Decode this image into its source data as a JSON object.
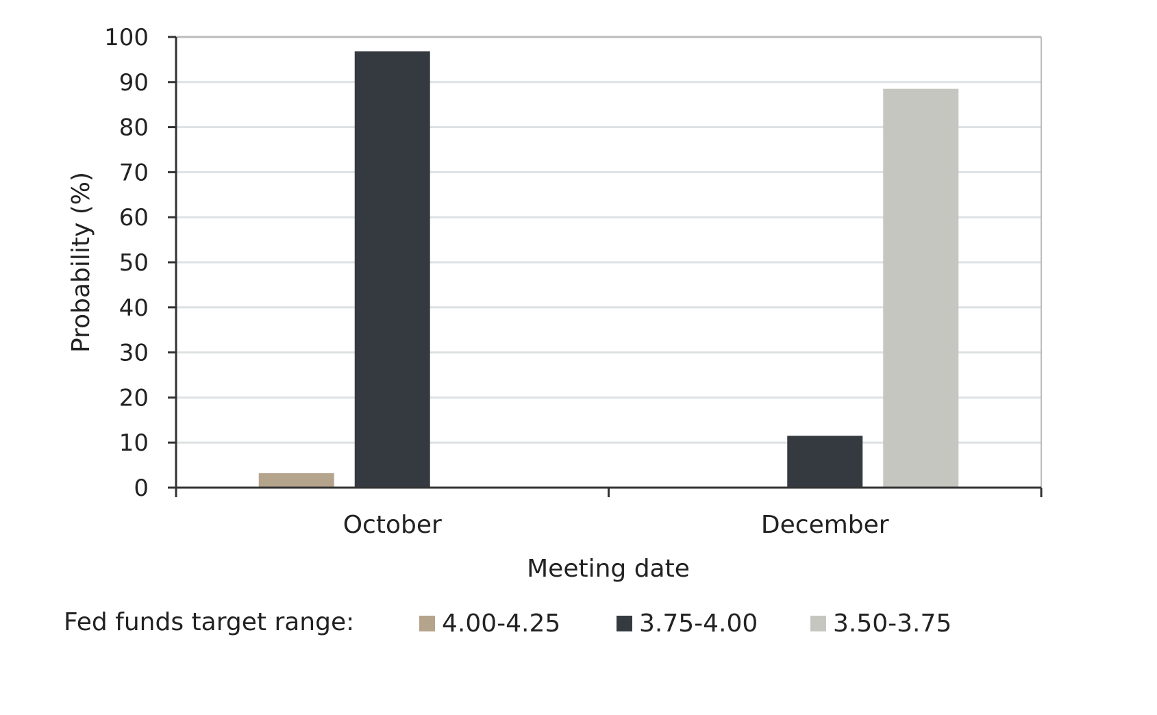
{
  "chart_data": {
    "type": "bar",
    "title": "",
    "xlabel": "Meeting date",
    "ylabel": "Probability (%)",
    "ylim": [
      0,
      100
    ],
    "yticks": [
      0,
      10,
      20,
      30,
      40,
      50,
      60,
      70,
      80,
      90,
      100
    ],
    "grid": true,
    "categories": [
      "October",
      "December"
    ],
    "legend_title": "Fed funds target range:",
    "legend_position": "bottom",
    "series": [
      {
        "name": "4.00-4.25",
        "color": "#b5a48c",
        "values": [
          3.2,
          null
        ]
      },
      {
        "name": "3.75-4.00",
        "color": "#343a40",
        "values": [
          96.8,
          11.5
        ]
      },
      {
        "name": "3.50-3.75",
        "color": "#c6c6c0",
        "values": [
          null,
          88.5
        ]
      }
    ]
  }
}
